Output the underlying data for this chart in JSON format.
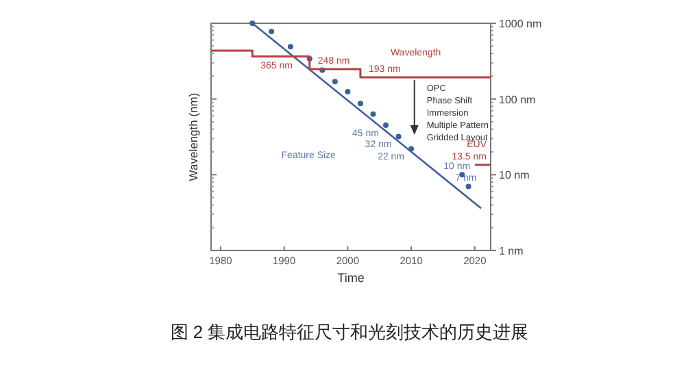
{
  "chart_data": {
    "type": "line",
    "title": "图 2 集成电路特征尺寸和光刻技术的历史进展",
    "xlabel": "Time",
    "ylabel": "Wavelength (nm)",
    "xlim": [
      1978.5,
      2022.5
    ],
    "xticks": [
      1980,
      1990,
      2000,
      2010,
      2020
    ],
    "ylim": [
      1,
      1000
    ],
    "yticks": [
      {
        "value": 1,
        "label": "1 nm"
      },
      {
        "value": 10,
        "label": "10 nm"
      },
      {
        "value": 100,
        "label": "100 nm"
      },
      {
        "value": 1000,
        "label": "1000 nm"
      }
    ],
    "log": "y",
    "series": [
      {
        "type": "scatter",
        "marker": "circle",
        "name": "Feature Size",
        "color": "#3d5f9e",
        "x": [
          1985,
          1988,
          1991,
          1994,
          1996,
          1998,
          2000,
          2002,
          2004,
          2006,
          2008,
          2010,
          2018,
          2019
        ],
        "values": [
          1000,
          780,
          490,
          340,
          240,
          170,
          125,
          87,
          63,
          45,
          32,
          22,
          10,
          7
        ],
        "value_labels": [
          null,
          null,
          null,
          null,
          null,
          null,
          null,
          null,
          null,
          "45 nm",
          "32 nm",
          "22 nm",
          "10 nm",
          "7 nm"
        ]
      },
      {
        "color": "#3d5f9e",
        "x": [
          1985,
          2021
        ],
        "values": [
          1000,
          3.6
        ]
      },
      {
        "type": "step",
        "name": "Wavelength",
        "color": "#b5403f",
        "x": [
          1978.5,
          1985,
          1994,
          2002,
          2022.5
        ],
        "values": [
          436,
          365,
          248,
          193,
          193
        ],
        "value_labels": [
          null,
          "365 nm",
          "248 nm",
          "193 nm",
          null
        ]
      },
      {
        "type": "step",
        "name": "EUV",
        "color": "#b5403f",
        "x": [
          2020,
          2022.5
        ],
        "values": [
          13.5,
          13.5
        ],
        "value_labels": [
          "13.5 nm",
          null
        ]
      }
    ],
    "annotations": [
      "OPC",
      "Phase Shift",
      "Immersion",
      "Multiple Pattern",
      "Gridded Layout"
    ]
  }
}
